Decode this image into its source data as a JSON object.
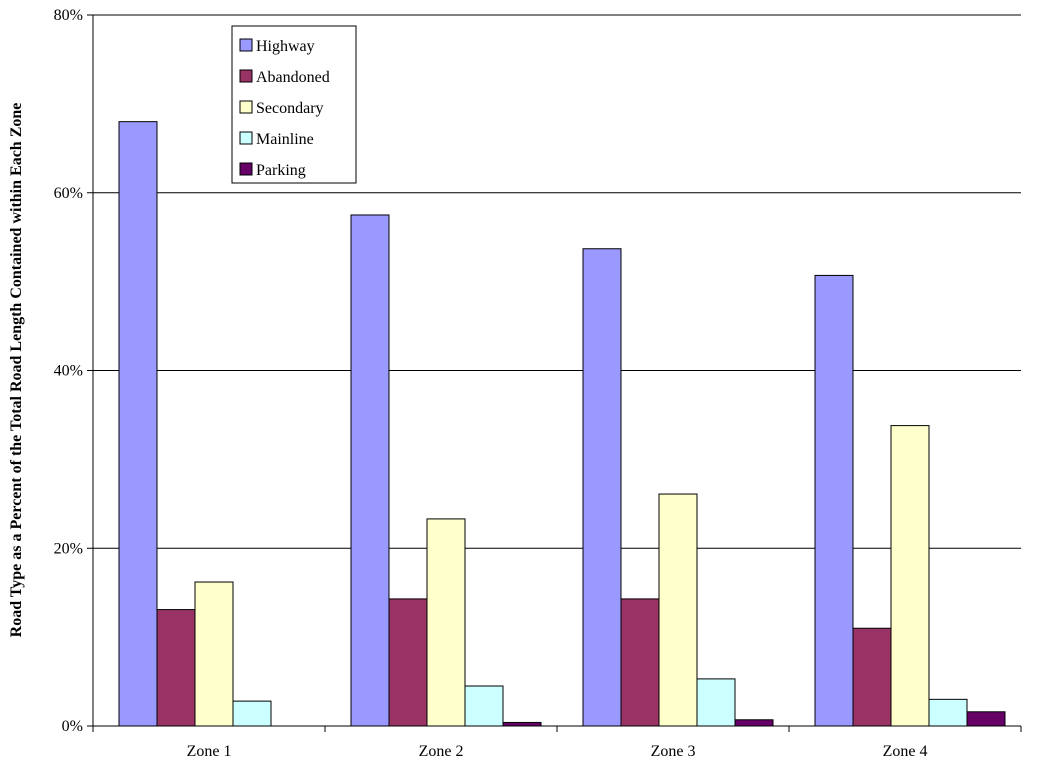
{
  "chart_data": {
    "type": "bar",
    "title": "",
    "xlabel": "",
    "ylabel": "Road Type as a Percent of the Total Road Length Contained within Each Zone",
    "categories": [
      "Zone 1",
      "Zone 2",
      "Zone 3",
      "Zone 4"
    ],
    "ylim": [
      0,
      80
    ],
    "yticks": [
      0,
      20,
      40,
      60,
      80
    ],
    "ytick_format": "%",
    "grid": "horizontal",
    "legend_position": "top-left",
    "series": [
      {
        "name": "Highway",
        "color": "#9999ff",
        "values": [
          68,
          57.5,
          53.7,
          50.7
        ]
      },
      {
        "name": "Abandoned",
        "color": "#993366",
        "values": [
          13.1,
          14.3,
          14.3,
          11.0
        ]
      },
      {
        "name": "Secondary",
        "color": "#ffffcc",
        "values": [
          16.2,
          23.3,
          26.1,
          33.8
        ]
      },
      {
        "name": "Mainline",
        "color": "#ccffff",
        "values": [
          2.8,
          4.5,
          5.3,
          3.0
        ]
      },
      {
        "name": "Parking",
        "color": "#660066",
        "values": [
          0,
          0.4,
          0.7,
          1.6
        ]
      }
    ]
  }
}
